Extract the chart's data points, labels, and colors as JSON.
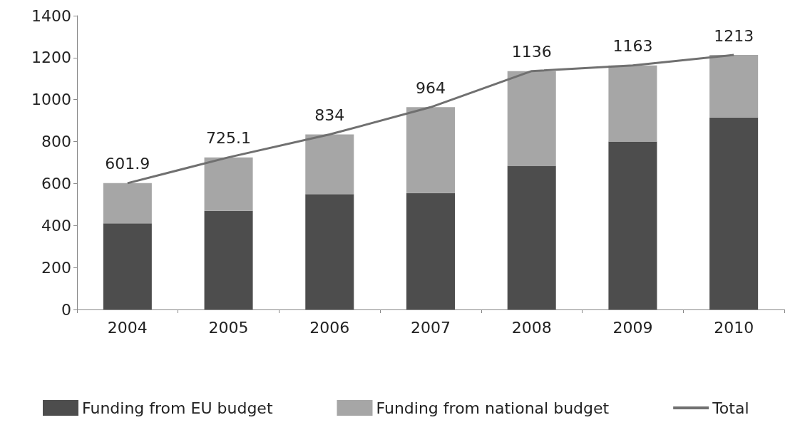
{
  "chart_data": {
    "type": "bar",
    "stacked": true,
    "categories": [
      "2004",
      "2005",
      "2006",
      "2007",
      "2008",
      "2009",
      "2010"
    ],
    "series": [
      {
        "name": "Funding from EU budget",
        "color": "#4d4d4d",
        "values": [
          410,
          470,
          550,
          555,
          685,
          800,
          915
        ]
      },
      {
        "name": "Funding from national budget",
        "color": "#a6a6a6",
        "values": [
          192,
          255,
          284,
          409,
          451,
          363,
          298
        ]
      },
      {
        "name": "Total",
        "type": "line",
        "color": "#707070",
        "marker": "none",
        "values": [
          601.9,
          725.1,
          834,
          964,
          1136,
          1163,
          1213
        ],
        "value_labels": [
          "601.9",
          "725.1",
          "834",
          "964",
          "1136",
          "1163",
          "1213"
        ]
      }
    ],
    "ylim": [
      0,
      1400
    ],
    "yticks": [
      0,
      200,
      400,
      600,
      800,
      1000,
      1200,
      1400
    ],
    "grid": false,
    "legend": "bottom"
  }
}
